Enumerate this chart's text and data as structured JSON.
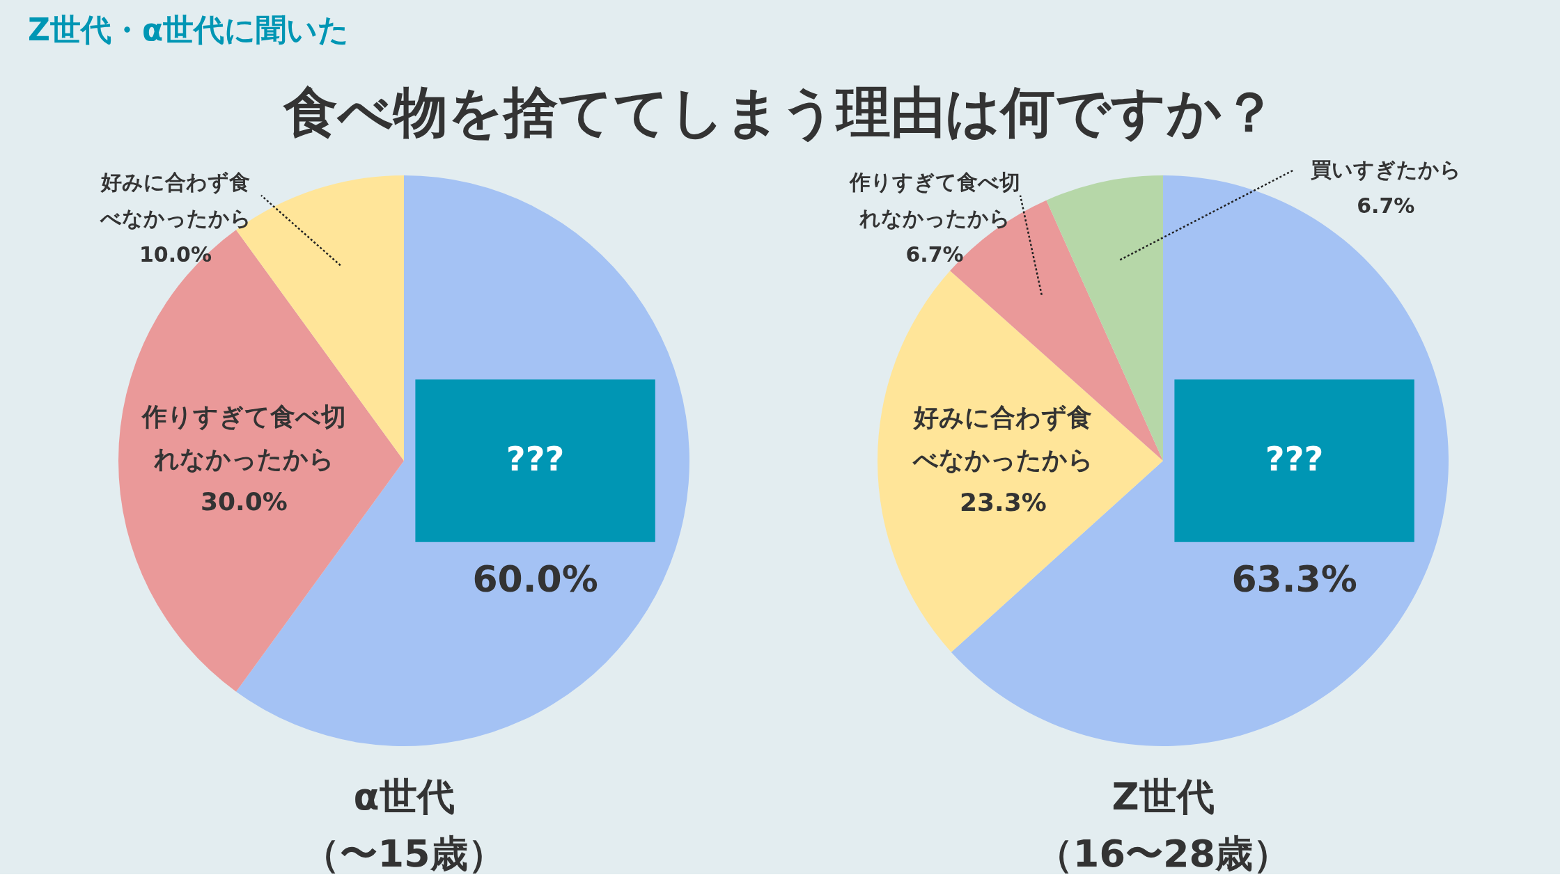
{
  "chart_data": [
    {
      "type": "other",
      "title": "食べ物を捨ててしまう理由は何ですか？",
      "subtitle": "Z世代・α世代に聞いた"
    },
    {
      "type": "pie",
      "xlabel": "α世代（〜15歳）",
      "categories": [
        "???",
        "作りすぎて食べ切れなかったから",
        "好みに合わず食べなかったから"
      ],
      "values": [
        60.0,
        30.0,
        10.0
      ],
      "value_labels": [
        "60.0%",
        "30.0%",
        "10.0%"
      ],
      "colors": [
        "#a4c2f4",
        "#ea9999",
        "#ffe599"
      ]
    },
    {
      "type": "pie",
      "xlabel": "Z世代（16〜28歳）",
      "categories": [
        "???",
        "好みに合わず食べなかったから",
        "作りすぎて食べ切れなかったから",
        "買いすぎたから"
      ],
      "values": [
        63.3,
        23.3,
        6.7,
        6.7
      ],
      "value_labels": [
        "63.3%",
        "23.3%",
        "6.7%",
        "6.7%"
      ],
      "colors": [
        "#a4c2f4",
        "#ffe599",
        "#ea9999",
        "#b6d7a8"
      ]
    }
  ]
}
